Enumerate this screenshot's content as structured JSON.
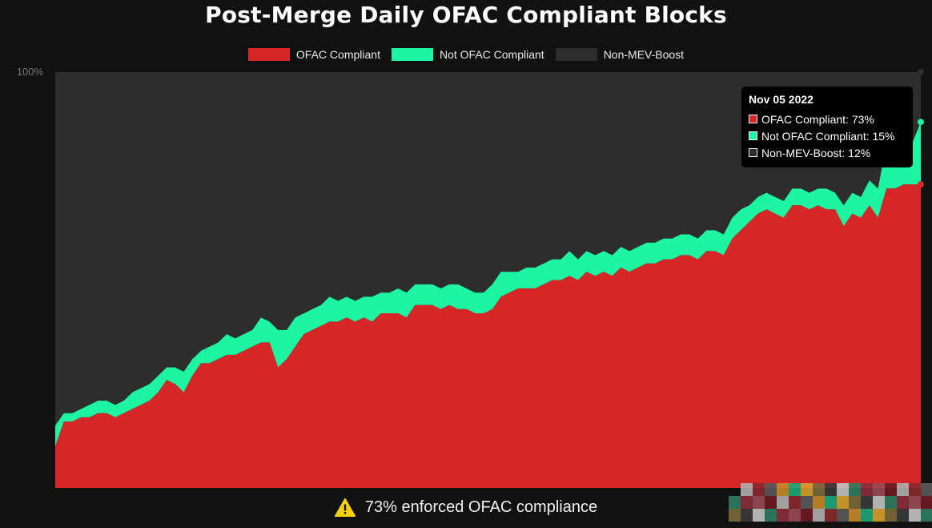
{
  "title": "Post-Merge Daily OFAC Compliant Blocks",
  "legend": [
    {
      "label": "OFAC Compliant",
      "color": "#d62728"
    },
    {
      "label": "Not OFAC Compliant",
      "color": "#1df5a3"
    },
    {
      "label": "Non-MEV-Boost",
      "color": "#2d2d2d"
    }
  ],
  "tooltip": {
    "date": "Nov 05 2022",
    "rows": [
      {
        "label": "OFAC Compliant: 73%",
        "color": "#d62728"
      },
      {
        "label": "Not OFAC Compliant: 15%",
        "color": "#1df5a3"
      },
      {
        "label": "Non-MEV-Boost: 12%",
        "color": "#2d2d2d"
      }
    ]
  },
  "footer": {
    "text": "73% enforced OFAC compliance",
    "icon": "warning-icon"
  },
  "chart_data": {
    "type": "area",
    "stacked": true,
    "ylim": [
      0,
      100
    ],
    "y_tick_labels": [
      "100%"
    ],
    "grid": false,
    "legend_position": "top-center",
    "series": [
      {
        "name": "OFAC Compliant",
        "color": "#d62728",
        "values": [
          10,
          16,
          16,
          17,
          17,
          18,
          18,
          17,
          18,
          19,
          20,
          21,
          23,
          26,
          25,
          23,
          27,
          30,
          30,
          31,
          32,
          32,
          33,
          34,
          35,
          35,
          29,
          31,
          34,
          37,
          38,
          39,
          40,
          40,
          41,
          40,
          41,
          40,
          42,
          42,
          42,
          41,
          44,
          44,
          44,
          43,
          44,
          43,
          43,
          42,
          42,
          43,
          46,
          47,
          48,
          48,
          48,
          49,
          50,
          50,
          51,
          50,
          52,
          51,
          52,
          51,
          53,
          52,
          53,
          54,
          54,
          55,
          55,
          56,
          56,
          55,
          57,
          57,
          56,
          60,
          62,
          64,
          66,
          67,
          66,
          65,
          68,
          68,
          67,
          68,
          67,
          67,
          63,
          66,
          65,
          68,
          65,
          72,
          72,
          73,
          73,
          73
        ]
      },
      {
        "name": "Not OFAC Compliant",
        "color": "#1df5a3",
        "values": [
          5,
          2,
          2,
          2,
          3,
          3,
          3,
          3,
          3,
          4,
          4,
          4,
          4,
          3,
          4,
          5,
          4,
          3,
          4,
          4,
          5,
          4,
          4,
          4,
          6,
          5,
          9,
          7,
          7,
          5,
          5,
          5,
          6,
          5,
          5,
          5,
          5,
          6,
          5,
          5,
          6,
          6,
          5,
          5,
          5,
          5,
          5,
          6,
          5,
          5,
          5,
          6,
          6,
          5,
          4,
          5,
          5,
          5,
          5,
          5,
          6,
          5,
          5,
          5,
          5,
          5,
          5,
          5,
          5,
          5,
          5,
          5,
          5,
          5,
          5,
          5,
          5,
          5,
          5,
          5,
          5,
          4,
          4,
          4,
          4,
          4,
          4,
          4,
          4,
          4,
          5,
          4,
          5,
          5,
          5,
          6,
          7,
          11,
          12,
          10,
          10,
          15
        ]
      },
      {
        "name": "Non-MEV-Boost",
        "color": "#2d2d2d",
        "values": [
          85,
          82,
          82,
          81,
          80,
          79,
          79,
          80,
          79,
          77,
          76,
          75,
          73,
          71,
          71,
          72,
          69,
          67,
          66,
          65,
          63,
          64,
          63,
          62,
          59,
          60,
          62,
          62,
          59,
          58,
          57,
          56,
          54,
          55,
          54,
          55,
          54,
          54,
          53,
          53,
          52,
          53,
          51,
          51,
          51,
          52,
          51,
          51,
          52,
          53,
          53,
          51,
          48,
          48,
          48,
          47,
          47,
          46,
          45,
          45,
          43,
          45,
          43,
          44,
          43,
          44,
          42,
          43,
          42,
          41,
          41,
          40,
          40,
          39,
          39,
          40,
          38,
          38,
          39,
          35,
          33,
          32,
          30,
          29,
          30,
          31,
          28,
          28,
          29,
          28,
          28,
          29,
          32,
          29,
          30,
          26,
          28,
          17,
          16,
          17,
          17,
          12
        ]
      }
    ]
  }
}
